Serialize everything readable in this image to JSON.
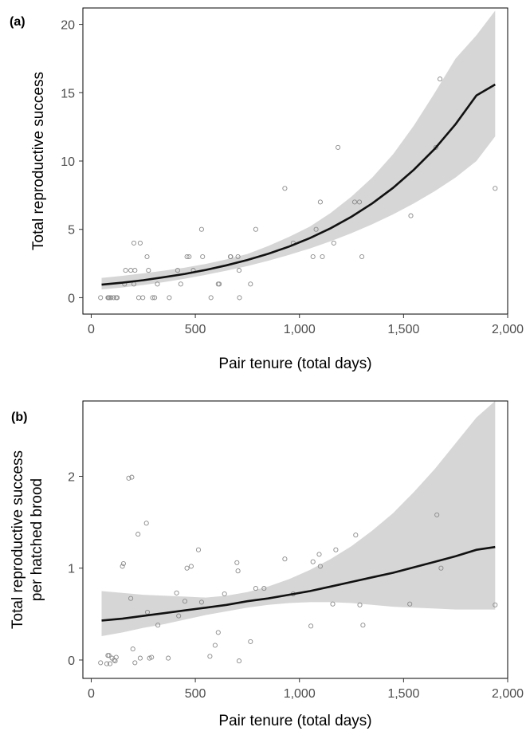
{
  "chart_data": [
    {
      "panel_label": "(a)",
      "type": "scatter",
      "xlabel": "Pair tenure (total days)",
      "ylabel": "Total reproductive success",
      "ylabel_lines": [
        "Total reproductive success"
      ],
      "xlim": [
        -40,
        2000
      ],
      "ylim": [
        -1.2,
        21.2
      ],
      "xticks": [
        0,
        500,
        1000,
        1500,
        2000
      ],
      "xtick_labels": [
        "0",
        "500",
        "1,000",
        "1,500",
        "2,000"
      ],
      "yticks": [
        0,
        5,
        10,
        15,
        20
      ],
      "ytick_labels": [
        "0",
        "5",
        "10",
        "15",
        "20"
      ],
      "points": [
        [
          45,
          0
        ],
        [
          80,
          0
        ],
        [
          83,
          0
        ],
        [
          88,
          0
        ],
        [
          95,
          0
        ],
        [
          108,
          0
        ],
        [
          120,
          0
        ],
        [
          125,
          0
        ],
        [
          160,
          1
        ],
        [
          165,
          2
        ],
        [
          190,
          2
        ],
        [
          205,
          4
        ],
        [
          210,
          2
        ],
        [
          205,
          1
        ],
        [
          228,
          0
        ],
        [
          235,
          4
        ],
        [
          248,
          0
        ],
        [
          268,
          3
        ],
        [
          275,
          2
        ],
        [
          295,
          0
        ],
        [
          305,
          0
        ],
        [
          318,
          1
        ],
        [
          375,
          0
        ],
        [
          415,
          2
        ],
        [
          430,
          1
        ],
        [
          460,
          3
        ],
        [
          470,
          3
        ],
        [
          490,
          2
        ],
        [
          530,
          5
        ],
        [
          535,
          3
        ],
        [
          575,
          0
        ],
        [
          610,
          1
        ],
        [
          615,
          1
        ],
        [
          668,
          3
        ],
        [
          670,
          3
        ],
        [
          705,
          3
        ],
        [
          710,
          2
        ],
        [
          712,
          0
        ],
        [
          765,
          1
        ],
        [
          790,
          5
        ],
        [
          930,
          8
        ],
        [
          970,
          4
        ],
        [
          1065,
          3
        ],
        [
          1080,
          5
        ],
        [
          1100,
          7
        ],
        [
          1110,
          3
        ],
        [
          1165,
          4
        ],
        [
          1185,
          11
        ],
        [
          1265,
          7
        ],
        [
          1288,
          7
        ],
        [
          1300,
          3
        ],
        [
          1535,
          6
        ],
        [
          1655,
          11
        ],
        [
          1675,
          16
        ],
        [
          1940,
          8
        ]
      ],
      "fit": {
        "x": [
          50,
          150,
          250,
          350,
          450,
          550,
          650,
          750,
          850,
          950,
          1050,
          1150,
          1250,
          1350,
          1450,
          1550,
          1650,
          1750,
          1850,
          1940
        ],
        "y": [
          0.95,
          1.1,
          1.28,
          1.5,
          1.74,
          2.03,
          2.37,
          2.76,
          3.21,
          3.74,
          4.36,
          5.08,
          5.92,
          6.9,
          8.04,
          9.37,
          10.9,
          12.7,
          14.8,
          15.6
        ],
        "lower": [
          0.6,
          0.75,
          0.93,
          1.14,
          1.39,
          1.67,
          1.98,
          2.32,
          2.7,
          3.13,
          3.6,
          4.13,
          4.72,
          5.38,
          6.1,
          6.9,
          7.8,
          8.8,
          10.0,
          11.8
        ],
        "upper": [
          1.45,
          1.6,
          1.78,
          1.98,
          2.2,
          2.47,
          2.8,
          3.2,
          3.78,
          4.45,
          5.2,
          6.2,
          7.4,
          8.8,
          10.5,
          12.6,
          15.0,
          17.5,
          19.2,
          21.0
        ]
      }
    },
    {
      "panel_label": "(b)",
      "type": "scatter",
      "xlabel": "Pair tenure (total days)",
      "ylabel": "Total reproductive success per hatched brood",
      "ylabel_lines": [
        "Total reproductive success",
        "per hatched brood"
      ],
      "xlim": [
        -40,
        2000
      ],
      "ylim": [
        -0.2,
        2.82
      ],
      "xticks": [
        0,
        500,
        1000,
        1500,
        2000
      ],
      "xtick_labels": [
        "0",
        "500",
        "1,000",
        "1,500",
        "2,000"
      ],
      "yticks": [
        0,
        1,
        2
      ],
      "ytick_labels": [
        "0",
        "1",
        "2"
      ],
      "points": [
        [
          45,
          -0.03
        ],
        [
          75,
          -0.04
        ],
        [
          80,
          0.05
        ],
        [
          85,
          0.05
        ],
        [
          90,
          -0.04
        ],
        [
          100,
          0.02
        ],
        [
          110,
          0
        ],
        [
          115,
          -0.01
        ],
        [
          120,
          0.03
        ],
        [
          150,
          1.02
        ],
        [
          155,
          1.05
        ],
        [
          180,
          1.98
        ],
        [
          195,
          1.99
        ],
        [
          190,
          0.67
        ],
        [
          200,
          0.12
        ],
        [
          210,
          -0.03
        ],
        [
          225,
          1.37
        ],
        [
          235,
          0.02
        ],
        [
          265,
          1.49
        ],
        [
          270,
          0.52
        ],
        [
          280,
          0.02
        ],
        [
          290,
          0.03
        ],
        [
          320,
          0.38
        ],
        [
          370,
          0.02
        ],
        [
          410,
          0.73
        ],
        [
          420,
          0.48
        ],
        [
          450,
          0.64
        ],
        [
          460,
          1.0
        ],
        [
          480,
          1.02
        ],
        [
          515,
          1.2
        ],
        [
          530,
          0.63
        ],
        [
          570,
          0.04
        ],
        [
          595,
          0.16
        ],
        [
          610,
          0.3
        ],
        [
          640,
          0.72
        ],
        [
          700,
          1.06
        ],
        [
          705,
          0.97
        ],
        [
          710,
          -0.01
        ],
        [
          765,
          0.2
        ],
        [
          790,
          0.78
        ],
        [
          830,
          0.78
        ],
        [
          930,
          1.1
        ],
        [
          970,
          0.72
        ],
        [
          1055,
          0.37
        ],
        [
          1065,
          1.07
        ],
        [
          1095,
          1.15
        ],
        [
          1100,
          1.02
        ],
        [
          1160,
          0.61
        ],
        [
          1175,
          1.2
        ],
        [
          1270,
          1.36
        ],
        [
          1290,
          0.6
        ],
        [
          1305,
          0.38
        ],
        [
          1530,
          0.61
        ],
        [
          1660,
          1.58
        ],
        [
          1680,
          1.0
        ],
        [
          1940,
          0.6
        ]
      ],
      "fit": {
        "x": [
          50,
          150,
          250,
          350,
          450,
          550,
          650,
          750,
          850,
          950,
          1050,
          1150,
          1250,
          1350,
          1450,
          1550,
          1650,
          1750,
          1850,
          1940
        ],
        "y": [
          0.43,
          0.45,
          0.48,
          0.51,
          0.54,
          0.57,
          0.6,
          0.64,
          0.67,
          0.71,
          0.75,
          0.8,
          0.85,
          0.9,
          0.95,
          1.01,
          1.07,
          1.13,
          1.2,
          1.23
        ],
        "lower": [
          0.26,
          0.3,
          0.35,
          0.39,
          0.44,
          0.49,
          0.53,
          0.57,
          0.6,
          0.62,
          0.63,
          0.63,
          0.62,
          0.6,
          0.58,
          0.57,
          0.56,
          0.55,
          0.55,
          0.55
        ],
        "upper": [
          0.75,
          0.73,
          0.71,
          0.7,
          0.69,
          0.68,
          0.7,
          0.74,
          0.8,
          0.88,
          0.98,
          1.1,
          1.24,
          1.41,
          1.6,
          1.83,
          2.08,
          2.36,
          2.64,
          2.82
        ]
      }
    }
  ]
}
